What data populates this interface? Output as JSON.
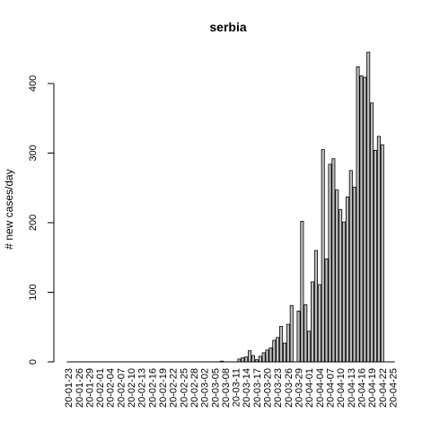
{
  "chart_data": {
    "type": "bar",
    "title": "serbia",
    "xlabel": "",
    "ylabel": "# new cases/day",
    "ylim": [
      0,
      445
    ],
    "yticks": [
      0,
      100,
      200,
      300,
      400
    ],
    "grid": false,
    "legend": "none",
    "bar_color": "#bebebe",
    "border_color": "#000000",
    "start_date": "2020-01-23",
    "categories": [
      "20-01-23",
      "20-01-24",
      "20-01-25",
      "20-01-26",
      "20-01-27",
      "20-01-28",
      "20-01-29",
      "20-01-30",
      "20-01-31",
      "20-02-01",
      "20-02-02",
      "20-02-03",
      "20-02-04",
      "20-02-05",
      "20-02-06",
      "20-02-07",
      "20-02-08",
      "20-02-09",
      "20-02-10",
      "20-02-11",
      "20-02-12",
      "20-02-13",
      "20-02-14",
      "20-02-15",
      "20-02-16",
      "20-02-17",
      "20-02-18",
      "20-02-19",
      "20-02-20",
      "20-02-21",
      "20-02-22",
      "20-02-23",
      "20-02-24",
      "20-02-25",
      "20-02-26",
      "20-02-27",
      "20-02-28",
      "20-02-29",
      "20-03-01",
      "20-03-02",
      "20-03-03",
      "20-03-04",
      "20-03-05",
      "20-03-06",
      "20-03-07",
      "20-03-08",
      "20-03-09",
      "20-03-10",
      "20-03-11",
      "20-03-12",
      "20-03-13",
      "20-03-14",
      "20-03-15",
      "20-03-16",
      "20-03-17",
      "20-03-18",
      "20-03-19",
      "20-03-20",
      "20-03-21",
      "20-03-22",
      "20-03-23",
      "20-03-24",
      "20-03-25",
      "20-03-26",
      "20-03-27",
      "20-03-28",
      "20-03-29",
      "20-03-30",
      "20-03-31",
      "20-04-01",
      "20-04-02",
      "20-04-03",
      "20-04-04",
      "20-04-05",
      "20-04-06",
      "20-04-07",
      "20-04-08",
      "20-04-09",
      "20-04-10",
      "20-04-11",
      "20-04-12",
      "20-04-13",
      "20-04-14",
      "20-04-15",
      "20-04-16",
      "20-04-17",
      "20-04-18",
      "20-04-19",
      "20-04-20",
      "20-04-21",
      "20-04-22",
      "20-04-23",
      "20-04-24",
      "20-04-25"
    ],
    "xtick_labels": [
      "20-01-23",
      "20-01-26",
      "20-01-29",
      "20-02-01",
      "20-02-04",
      "20-02-07",
      "20-02-10",
      "20-02-13",
      "20-02-16",
      "20-02-19",
      "20-02-22",
      "20-02-25",
      "20-02-28",
      "20-03-02",
      "20-03-05",
      "20-03-08",
      "20-03-11",
      "20-03-14",
      "20-03-17",
      "20-03-20",
      "20-03-23",
      "20-03-26",
      "20-03-29",
      "20-04-01",
      "20-04-04",
      "20-04-07",
      "20-04-10",
      "20-04-13",
      "20-04-16",
      "20-04-19",
      "20-04-22",
      "20-04-25"
    ],
    "values": [
      0,
      0,
      0,
      0,
      0,
      0,
      0,
      0,
      0,
      0,
      0,
      0,
      0,
      0,
      0,
      0,
      0,
      0,
      0,
      0,
      0,
      0,
      0,
      0,
      0,
      0,
      0,
      0,
      0,
      0,
      0,
      0,
      0,
      0,
      0,
      0,
      0,
      0,
      0,
      0,
      0,
      0,
      0,
      0,
      1,
      0,
      0,
      0,
      0,
      4,
      6,
      7,
      16,
      9,
      3,
      8,
      13,
      17,
      20,
      31,
      35,
      51,
      27,
      54,
      81,
      0,
      73,
      202,
      82,
      44,
      115,
      160,
      111,
      305,
      148,
      284,
      292,
      247,
      219,
      201,
      237,
      275,
      251,
      424,
      411,
      409,
      445,
      372,
      304,
      324,
      312,
      0,
      0,
      0
    ]
  }
}
